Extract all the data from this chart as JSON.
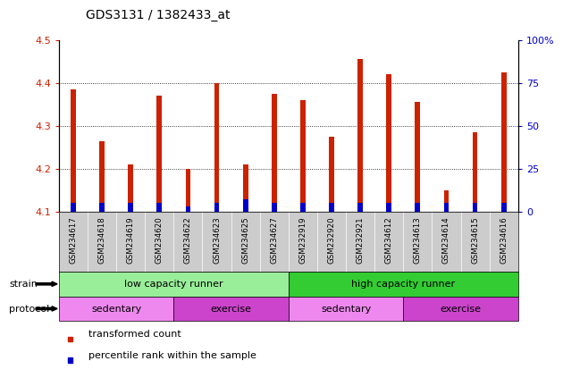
{
  "title": "GDS3131 / 1382433_at",
  "samples": [
    "GSM234617",
    "GSM234618",
    "GSM234619",
    "GSM234620",
    "GSM234622",
    "GSM234623",
    "GSM234625",
    "GSM234627",
    "GSM232919",
    "GSM232920",
    "GSM232921",
    "GSM234612",
    "GSM234613",
    "GSM234614",
    "GSM234615",
    "GSM234616"
  ],
  "transformed_count": [
    4.385,
    4.265,
    4.21,
    4.37,
    4.2,
    4.4,
    4.21,
    4.375,
    4.36,
    4.275,
    4.455,
    4.42,
    4.355,
    4.15,
    4.285,
    4.425
  ],
  "percentile_rank": [
    5,
    5,
    5,
    5,
    3,
    5,
    7,
    5,
    5,
    5,
    5,
    5,
    5,
    5,
    5,
    5
  ],
  "bar_base": 4.1,
  "ylim_left": [
    4.1,
    4.5
  ],
  "ylim_right": [
    0,
    100
  ],
  "yticks_left": [
    4.1,
    4.2,
    4.3,
    4.4,
    4.5
  ],
  "yticks_right": [
    0,
    25,
    50,
    75,
    100
  ],
  "red_color": "#CC2200",
  "blue_color": "#0000CC",
  "strain_groups": [
    {
      "label": "low capacity runner",
      "start": 0,
      "end": 8,
      "color": "#99EE99"
    },
    {
      "label": "high capacity runner",
      "start": 8,
      "end": 16,
      "color": "#33CC33"
    }
  ],
  "protocol_groups": [
    {
      "label": "sedentary",
      "start": 0,
      "end": 4,
      "color": "#EE88EE"
    },
    {
      "label": "exercise",
      "start": 4,
      "end": 8,
      "color": "#CC44CC"
    },
    {
      "label": "sedentary",
      "start": 8,
      "end": 12,
      "color": "#EE88EE"
    },
    {
      "label": "exercise",
      "start": 12,
      "end": 16,
      "color": "#CC44CC"
    }
  ],
  "strain_label": "strain",
  "protocol_label": "protocol",
  "legend_red": "transformed count",
  "legend_blue": "percentile rank within the sample",
  "axis_left_color": "#CC2200",
  "axis_right_color": "#0000CC",
  "tick_area_color": "#CCCCCC",
  "bar_width": 0.18,
  "percentile_scale": 0.002
}
